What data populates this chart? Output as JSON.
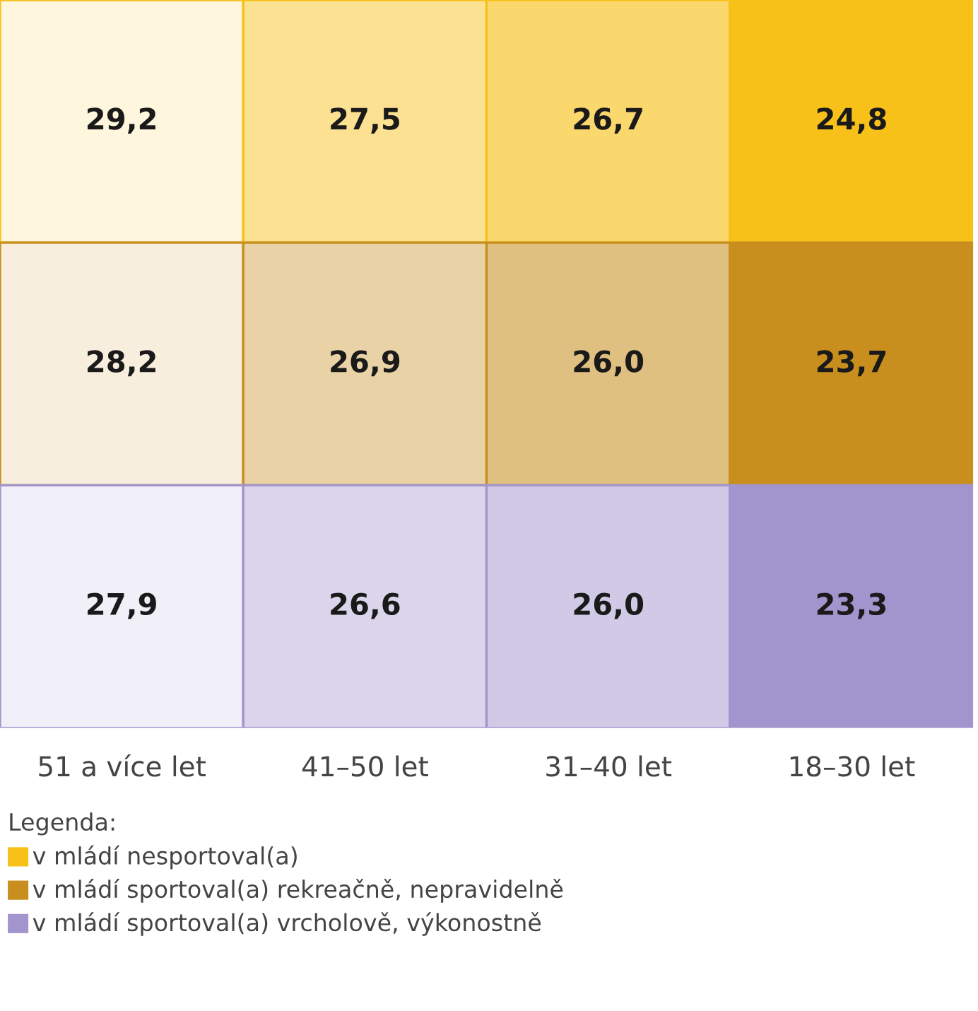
{
  "chart_data": {
    "type": "heatmap",
    "categories": [
      "51 a více let",
      "41–50 let",
      "31–40 let",
      "18–30 let"
    ],
    "y_categories": [
      null,
      null,
      null
    ],
    "colors": [
      "#f8c11a",
      "#c88f1e",
      "#a294cc"
    ],
    "cells": [
      [
        29.2,
        27.5,
        26.7,
        24.8
      ],
      [
        28.2,
        26.9,
        26.0,
        23.7
      ],
      [
        27.9,
        26.6,
        26.0,
        23.3
      ]
    ],
    "cell_labels": [
      [
        "29,2",
        "27,5",
        "26,7",
        "24,8"
      ],
      [
        "28,2",
        "26,9",
        "26,0",
        "23,7"
      ],
      [
        "27,9",
        "26,6",
        "26,0",
        "23,3"
      ]
    ],
    "annotations": [
      "Legenda:",
      "v mládí nesportoval(a)",
      "v mládí sportoval(a) rekreačně, nepravidelně",
      "v mládí sportoval(a) vrcholově, výkonostně"
    ]
  }
}
